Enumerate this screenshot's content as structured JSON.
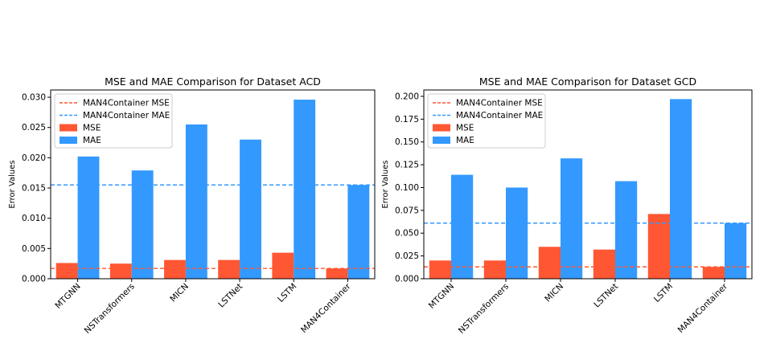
{
  "colors": {
    "mse": "#FF5733",
    "mae": "#3399FF",
    "axis": "#000000"
  },
  "chart_data": [
    {
      "type": "bar",
      "title": "MSE and MAE Comparison for Dataset ACD",
      "xlabel": "",
      "ylabel": "Error Values",
      "categories": [
        "MTGNN",
        "NSTransformers",
        "MICN",
        "LSTNet",
        "LSTM",
        "MAN4Container"
      ],
      "series": [
        {
          "name": "MSE",
          "values": [
            0.0026,
            0.0025,
            0.0031,
            0.0031,
            0.0043,
            0.0017
          ]
        },
        {
          "name": "MAE",
          "values": [
            0.0202,
            0.0179,
            0.0255,
            0.023,
            0.0296,
            0.0155
          ]
        }
      ],
      "reference_lines": [
        {
          "name": "MAN4Container MSE",
          "value": 0.0017,
          "series": "MSE"
        },
        {
          "name": "MAN4Container MAE",
          "value": 0.0155,
          "series": "MAE"
        }
      ],
      "ylim": [
        0,
        0.0312
      ],
      "yticks": [
        "0.000",
        "0.005",
        "0.010",
        "0.015",
        "0.020",
        "0.025",
        "0.030"
      ],
      "grid": false,
      "legend": "top-left"
    },
    {
      "type": "bar",
      "title": "MSE and MAE Comparison for Dataset GCD",
      "xlabel": "",
      "ylabel": "Error Values",
      "categories": [
        "MTGNN",
        "NSTransformers",
        "MICN",
        "LSTNet",
        "LSTM",
        "MAN4Container"
      ],
      "series": [
        {
          "name": "MSE",
          "values": [
            0.02,
            0.02,
            0.035,
            0.032,
            0.071,
            0.013
          ]
        },
        {
          "name": "MAE",
          "values": [
            0.114,
            0.1,
            0.132,
            0.107,
            0.197,
            0.061
          ]
        }
      ],
      "reference_lines": [
        {
          "name": "MAN4Container MSE",
          "value": 0.013,
          "series": "MSE"
        },
        {
          "name": "MAN4Container MAE",
          "value": 0.061,
          "series": "MAE"
        }
      ],
      "ylim": [
        0,
        0.207
      ],
      "yticks": [
        "0.000",
        "0.025",
        "0.050",
        "0.075",
        "0.100",
        "0.125",
        "0.150",
        "0.175",
        "0.200"
      ],
      "grid": false,
      "legend": "top-left"
    }
  ]
}
